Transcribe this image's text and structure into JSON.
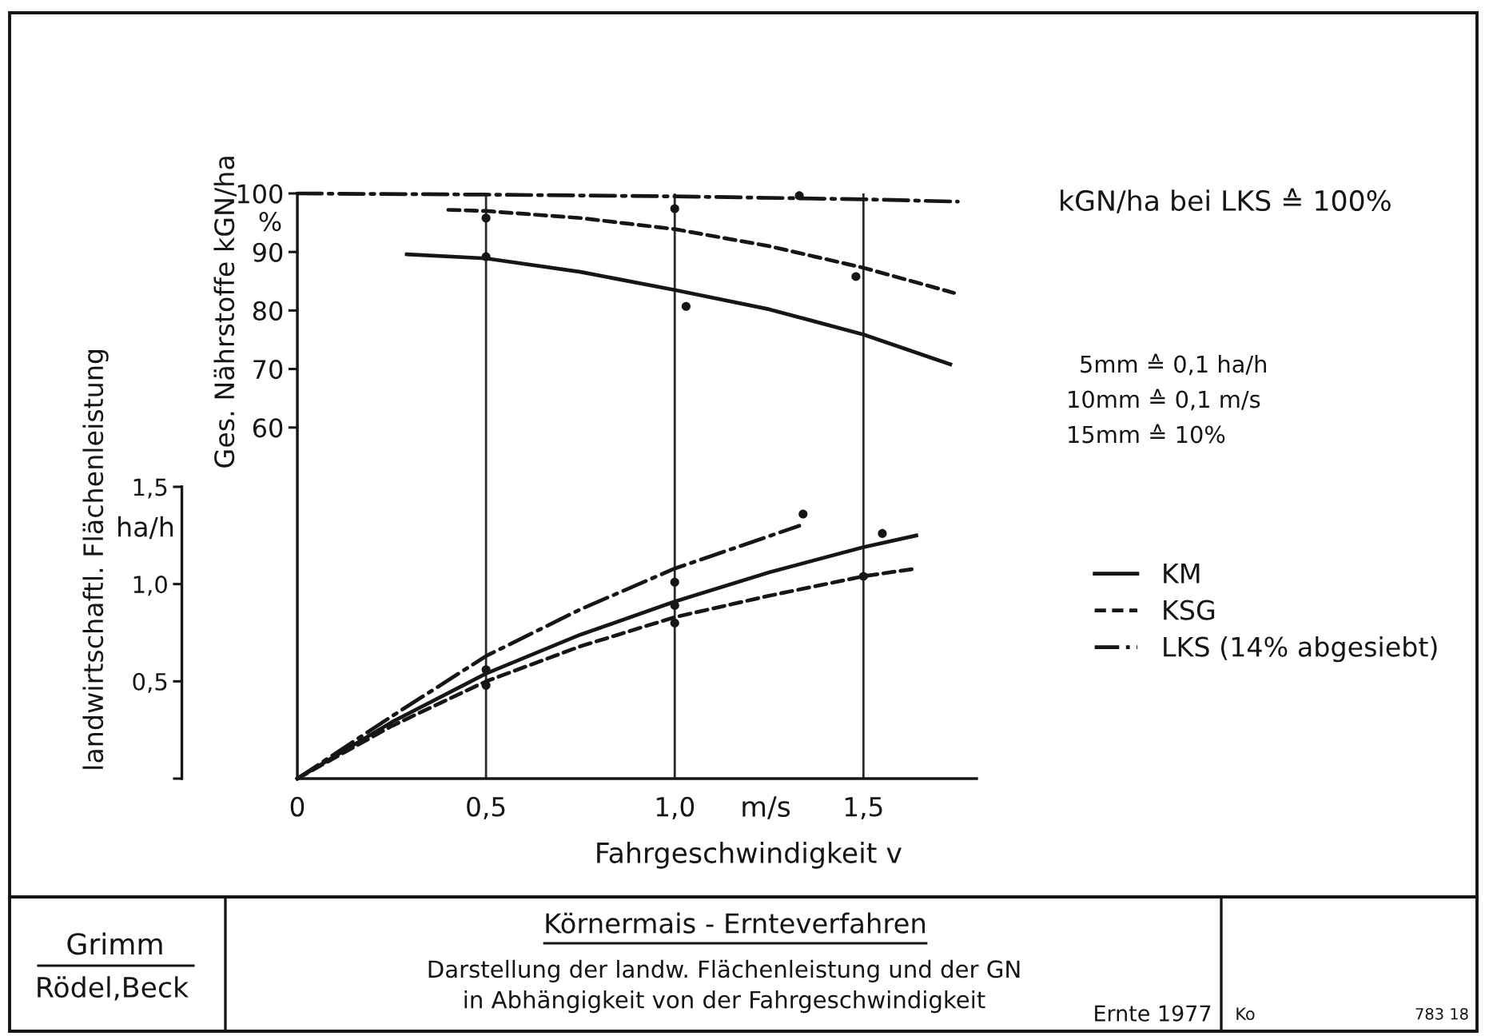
{
  "chart_data": {
    "type": "line",
    "title": "Körnermais - Ernteverfahren",
    "subtitle": "Darstellung der landw. Flächenleistung und der GN\nin Abhängigkeit von der Fahrgeschwindigkeit",
    "xlabel": "Fahrgeschwindigkeit v",
    "ylabel": "Ges. Nährstoffe kGN/ha",
    "y2label": "landwirtschaftl. Flächenleistung",
    "xlim": [
      0,
      1.8
    ],
    "xticks": [
      0,
      {
        "value": 0.5,
        "label": "0,5"
      },
      {
        "value": 1.0,
        "label": "1,0"
      },
      {
        "value": 1.5,
        "label": "1,5"
      }
    ],
    "ylim": [
      0,
      100
    ],
    "yticks": [
      60,
      70,
      80,
      90,
      100
    ],
    "y2lim": [
      0,
      1.5
    ],
    "y2ticks": [
      {
        "value": 0,
        "label": null
      },
      {
        "value": 0.5,
        "label": "0,5"
      },
      {
        "value": 1.0,
        "label": "1,0"
      },
      {
        "value": 1.5,
        "label": "1,5"
      }
    ],
    "grid": "x",
    "legend": "right",
    "series": [
      {
        "name": "KM",
        "color": "#161616",
        "line_style": "solid",
        "x": [
          0.29,
          0.5,
          0.75,
          1.0,
          1.25,
          1.5,
          1.73
        ],
        "values": [
          89.6,
          88.9,
          86.6,
          83.5,
          80.2,
          75.9,
          70.8
        ]
      },
      {
        "name": "KSG",
        "color": "#161616",
        "line_style": "dashed",
        "x": [
          0.4,
          0.5,
          0.75,
          1.0,
          1.25,
          1.5,
          1.74
        ],
        "values": [
          97.2,
          97.0,
          95.8,
          93.9,
          91.0,
          87.3,
          83.0
        ]
      },
      {
        "name": "LKS (14% abgesiebt)",
        "color": "#161616",
        "line_style": "dashdot",
        "x": [
          0,
          0.5,
          1.0,
          1.5,
          1.75
        ],
        "values": [
          100,
          99.8,
          99.5,
          99.0,
          98.6
        ]
      },
      {
        "axis": "y2",
        "color": "#161616",
        "line_style": "solid",
        "x": [
          0,
          0.25,
          0.5,
          0.75,
          1.0,
          1.25,
          1.5,
          1.64
        ],
        "values": [
          0,
          0.29,
          0.54,
          0.74,
          0.91,
          1.06,
          1.19,
          1.25
        ]
      },
      {
        "axis": "y2",
        "color": "#161616",
        "line_style": "dashed",
        "x": [
          0,
          0.25,
          0.5,
          0.75,
          1.0,
          1.25,
          1.5,
          1.64
        ],
        "values": [
          0,
          0.27,
          0.5,
          0.68,
          0.83,
          0.94,
          1.04,
          1.08
        ]
      },
      {
        "axis": "y2",
        "color": "#161616",
        "line_style": "dashdot",
        "x": [
          0,
          0.25,
          0.5,
          0.75,
          1.0,
          1.33
        ],
        "values": [
          0,
          0.32,
          0.63,
          0.87,
          1.08,
          1.3
        ]
      },
      {
        "type": "scatter",
        "marker": "circle",
        "color": "#161616",
        "x": [
          0.5,
          0.5,
          1.0,
          1.03,
          1.48,
          1.33
        ],
        "values": [
          95.8,
          89.2,
          97.4,
          80.7,
          85.8,
          99.6
        ]
      },
      {
        "type": "scatter",
        "marker": "circle",
        "axis": "y2",
        "color": "#161616",
        "x": [
          0.5,
          0.5,
          1.0,
          1.0,
          1.0,
          1.34,
          1.5,
          1.55
        ],
        "values": [
          0.56,
          0.48,
          1.01,
          0.89,
          0.8,
          1.36,
          1.04,
          1.26
        ]
      }
    ],
    "annotations": [
      "%",
      "ha/h",
      "m/s",
      "kGN/ha bei LKS ≙ 100%",
      "5mm ≙ 0,1 ha/h",
      "10mm ≙ 0,1 m/s",
      "15mm ≙ 10%",
      "Grimm",
      "Rödel,Beck",
      "Ernte 1977",
      "Ko",
      "783 18"
    ]
  }
}
